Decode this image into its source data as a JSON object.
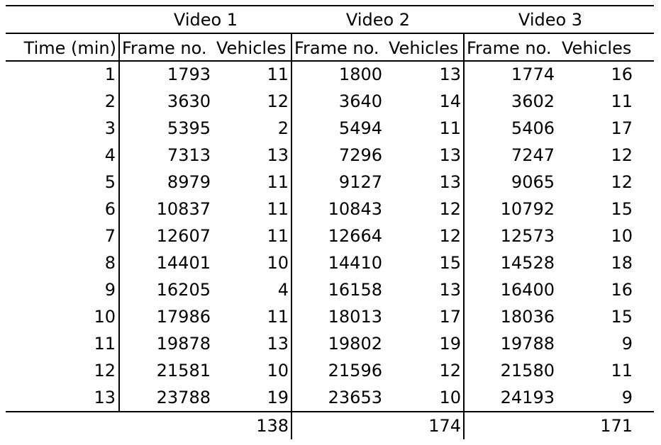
{
  "group_headers": [
    "Video 1",
    "Video 2",
    "Video 3"
  ],
  "column_headers": [
    "Time (min)",
    "Frame no.",
    "Vehicles",
    "Frame no.",
    "Vehicles",
    "Frame no.",
    "Vehicles"
  ],
  "rows": [
    [
      "1",
      "1793",
      "11",
      "1800",
      "13",
      "1774",
      "16"
    ],
    [
      "2",
      "3630",
      "12",
      "3640",
      "14",
      "3602",
      "11"
    ],
    [
      "3",
      "5395",
      "2",
      "5494",
      "11",
      "5406",
      "17"
    ],
    [
      "4",
      "7313",
      "13",
      "7296",
      "13",
      "7247",
      "12"
    ],
    [
      "5",
      "8979",
      "11",
      "9127",
      "13",
      "9065",
      "12"
    ],
    [
      "6",
      "10837",
      "11",
      "10843",
      "12",
      "10792",
      "15"
    ],
    [
      "7",
      "12607",
      "11",
      "12664",
      "12",
      "12573",
      "10"
    ],
    [
      "8",
      "14401",
      "10",
      "14410",
      "15",
      "14528",
      "18"
    ],
    [
      "9",
      "16205",
      "4",
      "16158",
      "13",
      "16400",
      "16"
    ],
    [
      "10",
      "17986",
      "11",
      "18013",
      "17",
      "18036",
      "15"
    ],
    [
      "11",
      "19878",
      "13",
      "19802",
      "19",
      "19788",
      "9"
    ],
    [
      "12",
      "21581",
      "10",
      "21596",
      "12",
      "21580",
      "11"
    ],
    [
      "13",
      "23788",
      "19",
      "23653",
      "10",
      "24193",
      "9"
    ]
  ],
  "totals": [
    "138",
    "174",
    "171"
  ]
}
